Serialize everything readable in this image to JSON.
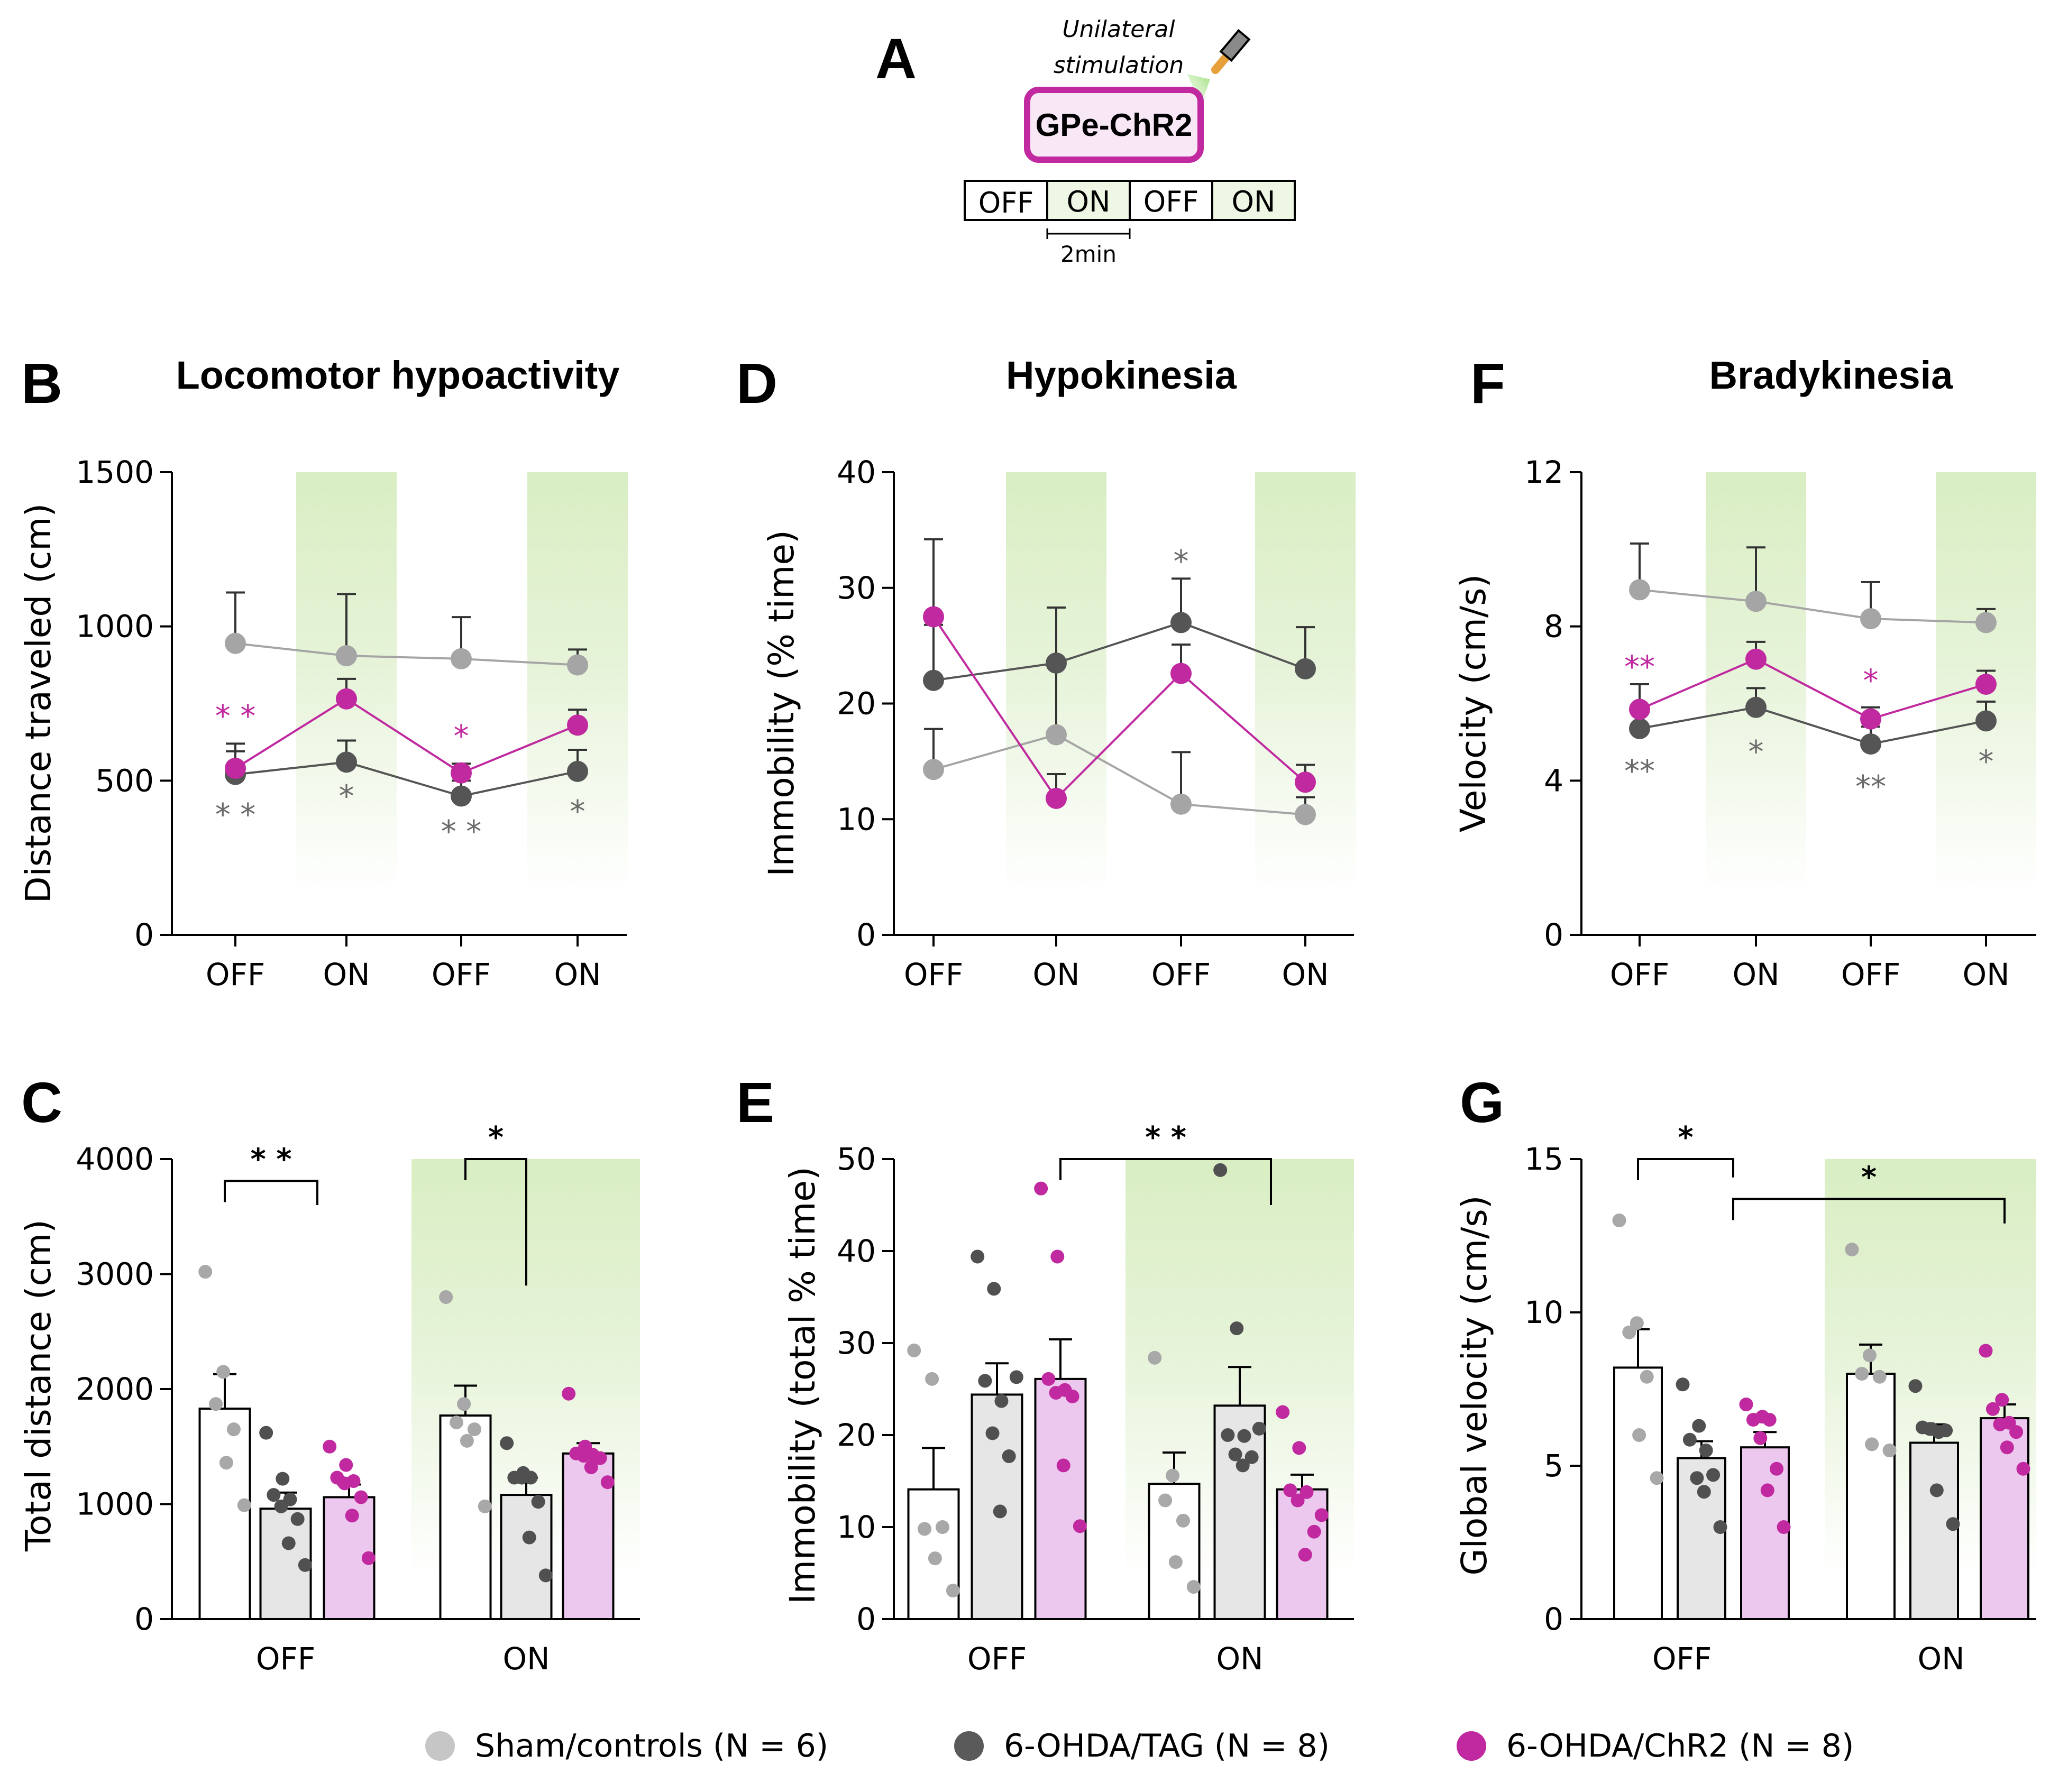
{
  "panelA": {
    "letter": "A",
    "stim_line1": "Unilateral",
    "stim_line2": "stimulation",
    "box_label": "GPe-ChR2",
    "protocol": [
      "OFF",
      "ON",
      "OFF",
      "ON"
    ],
    "scale_label": "2min"
  },
  "legend": [
    {
      "label": "Sham/controls (N = 6)",
      "color": "#c6c6c6"
    },
    {
      "label": "6-OHDA/TAG (N = 8)",
      "color": "#5a5a5a"
    },
    {
      "label": "6-OHDA/ChR2 (N = 8)",
      "color": "#c0299f"
    }
  ],
  "colors": {
    "sham": "#a5a5a5",
    "tag": "#555555",
    "chr2": "#c0299f",
    "tag_star": "#6a6a6a",
    "green_top": "#dcefc6",
    "bar_sham": "#ffffff",
    "bar_tag": "#e6e6e6",
    "bar_chr2": "#ecc8ef"
  },
  "chart_data": [
    {
      "id": "B",
      "letter": "B",
      "type": "line",
      "title": "Locomotor hypoactivity",
      "ylabel": "Distance traveled (cm)",
      "ylim": [
        0,
        1500
      ],
      "yticks": [
        0,
        500,
        1000,
        1500
      ],
      "categories": [
        "OFF",
        "ON",
        "OFF",
        "ON"
      ],
      "shaded": [
        1,
        3
      ],
      "series": [
        {
          "name": "Sham/controls",
          "key": "sham",
          "values": [
            945,
            905,
            895,
            875
          ],
          "err": [
            165,
            200,
            135,
            50
          ]
        },
        {
          "name": "6-OHDA/TAG",
          "key": "tag",
          "values": [
            520,
            560,
            450,
            530
          ],
          "err": [
            100,
            70,
            50,
            70
          ]
        },
        {
          "name": "6-OHDA/ChR2",
          "key": "chr2",
          "values": [
            540,
            765,
            525,
            680
          ],
          "err": [
            55,
            65,
            30,
            50
          ]
        }
      ],
      "stars": [
        {
          "text": "* *",
          "x": 0,
          "y": 710,
          "key": "chr2"
        },
        {
          "text": "* *",
          "x": 0,
          "y": 390,
          "key": "tag"
        },
        {
          "text": "*",
          "x": 1,
          "y": 450,
          "key": "tag"
        },
        {
          "text": "*",
          "x": 2,
          "y": 645,
          "key": "chr2"
        },
        {
          "text": "* *",
          "x": 2,
          "y": 335,
          "key": "tag"
        },
        {
          "text": "*",
          "x": 3,
          "y": 400,
          "key": "tag"
        }
      ]
    },
    {
      "id": "D",
      "letter": "D",
      "type": "line",
      "title": "Hypokinesia",
      "ylabel": "Immobility (% time)",
      "ylim": [
        0,
        40
      ],
      "yticks": [
        0,
        10,
        20,
        30,
        40
      ],
      "categories": [
        "OFF",
        "ON",
        "OFF",
        "ON"
      ],
      "shaded": [
        1,
        3
      ],
      "series": [
        {
          "name": "Sham/controls",
          "key": "sham",
          "values": [
            14.3,
            17.3,
            11.3,
            10.4
          ],
          "err": [
            3.5,
            6.0,
            4.5,
            1.5
          ]
        },
        {
          "name": "6-OHDA/TAG",
          "key": "tag",
          "values": [
            22.0,
            23.5,
            27.0,
            23.0
          ],
          "err": [
            4.8,
            4.8,
            3.8,
            3.6
          ]
        },
        {
          "name": "6-OHDA/ChR2",
          "key": "chr2",
          "values": [
            27.5,
            11.8,
            22.6,
            13.2
          ],
          "err": [
            6.7,
            2.1,
            2.5,
            1.5
          ]
        }
      ],
      "stars": [
        {
          "text": "*",
          "x": 2,
          "y": 32.3,
          "key": "tag"
        }
      ]
    },
    {
      "id": "F",
      "letter": "F",
      "type": "line",
      "title": "Bradykinesia",
      "ylabel": "Velocity (cm/s)",
      "ylim": [
        0,
        12
      ],
      "yticks": [
        0,
        4,
        8,
        12
      ],
      "categories": [
        "OFF",
        "ON",
        "OFF",
        "ON"
      ],
      "shaded": [
        1,
        3
      ],
      "series": [
        {
          "name": "Sham/controls",
          "key": "sham",
          "values": [
            8.95,
            8.65,
            8.2,
            8.1
          ],
          "err": [
            1.2,
            1.4,
            0.95,
            0.35
          ]
        },
        {
          "name": "6-OHDA/TAG",
          "key": "tag",
          "values": [
            5.35,
            5.9,
            4.95,
            5.55
          ],
          "err": [
            0.55,
            0.5,
            0.45,
            0.5
          ]
        },
        {
          "name": "6-OHDA/ChR2",
          "key": "chr2",
          "values": [
            5.85,
            7.15,
            5.6,
            6.5
          ],
          "err": [
            0.65,
            0.45,
            0.3,
            0.35
          ]
        }
      ],
      "stars": [
        {
          "text": "**",
          "x": 0,
          "y": 6.95,
          "key": "chr2"
        },
        {
          "text": "**",
          "x": 0,
          "y": 4.25,
          "key": "tag"
        },
        {
          "text": "*",
          "x": 1,
          "y": 4.75,
          "key": "tag"
        },
        {
          "text": "*",
          "x": 2,
          "y": 6.6,
          "key": "chr2"
        },
        {
          "text": "**",
          "x": 2,
          "y": 3.85,
          "key": "tag"
        },
        {
          "text": "*",
          "x": 3,
          "y": 4.5,
          "key": "tag"
        }
      ]
    },
    {
      "id": "C",
      "letter": "C",
      "type": "bar",
      "ylabel": "Total distance (cm)",
      "ylim": [
        0,
        4000
      ],
      "yticks": [
        0,
        1000,
        2000,
        3000,
        4000
      ],
      "categories": [
        "OFF",
        "ON"
      ],
      "shaded": [
        1
      ],
      "groups": [
        {
          "category": "OFF",
          "bars": [
            {
              "key": "sham",
              "value": 1830,
              "err": 300,
              "points": [
                3020,
                2150,
                1870,
                1650,
                1360,
                990
              ]
            },
            {
              "key": "tag",
              "value": 960,
              "err": 140,
              "points": [
                1620,
                1220,
                1080,
                1040,
                980,
                870,
                660,
                470
              ]
            },
            {
              "key": "chr2",
              "value": 1060,
              "err": 110,
              "points": [
                1500,
                1340,
                1230,
                1200,
                1180,
                1060,
                900,
                530
              ]
            }
          ]
        },
        {
          "category": "ON",
          "bars": [
            {
              "key": "sham",
              "value": 1770,
              "err": 260,
              "points": [
                2800,
                1870,
                1710,
                1650,
                1550,
                980
              ]
            },
            {
              "key": "tag",
              "value": 1080,
              "err": 150,
              "points": [
                1530,
                1270,
                1230,
                1230,
                1230,
                1020,
                710,
                380
              ]
            },
            {
              "key": "chr2",
              "value": 1440,
              "err": 90,
              "points": [
                1960,
                1500,
                1440,
                1430,
                1420,
                1400,
                1320,
                1190
              ]
            }
          ]
        }
      ],
      "brackets": [
        {
          "text": "* *",
          "from": [
            0,
            0
          ],
          "to": [
            0,
            1.5
          ],
          "y1": 3810,
          "y2": 3600
        },
        {
          "text": "*",
          "from": [
            1,
            0
          ],
          "to": [
            1,
            1
          ],
          "y1": 4000,
          "y2": 2900
        }
      ]
    },
    {
      "id": "E",
      "letter": "E",
      "type": "bar",
      "ylabel": "Immobility (total % time)",
      "ylim": [
        0,
        50
      ],
      "yticks": [
        0,
        10,
        20,
        30,
        40,
        50
      ],
      "categories": [
        "OFF",
        "ON"
      ],
      "shaded": [
        1
      ],
      "groups": [
        {
          "category": "OFF",
          "bars": [
            {
              "key": "sham",
              "value": 14.1,
              "err": 4.5,
              "points": [
                29.2,
                26.1,
                9.8,
                10.0,
                6.6,
                3.1
              ]
            },
            {
              "key": "tag",
              "value": 24.4,
              "err": 3.4,
              "points": [
                39.4,
                35.9,
                25.9,
                23.7,
                20.2,
                17.7,
                11.7,
                26.3
              ]
            },
            {
              "key": "chr2",
              "value": 26.1,
              "err": 4.3,
              "points": [
                46.8,
                39.4,
                26.1,
                24.9,
                24.6,
                24.2,
                16.7,
                10.1
              ]
            }
          ]
        },
        {
          "category": "ON",
          "bars": [
            {
              "key": "sham",
              "value": 14.7,
              "err": 3.4,
              "points": [
                28.4,
                15.6,
                12.9,
                10.7,
                6.2,
                3.5
              ]
            },
            {
              "key": "tag",
              "value": 23.2,
              "err": 4.2,
              "points": [
                48.8,
                31.6,
                20.0,
                19.9,
                17.9,
                17.6,
                16.7,
                20.7
              ]
            },
            {
              "key": "chr2",
              "value": 14.1,
              "err": 1.6,
              "points": [
                22.5,
                18.6,
                14.0,
                13.8,
                12.9,
                9.5,
                7.0,
                11.3
              ]
            }
          ]
        }
      ],
      "brackets": [
        {
          "text": "* *",
          "from": [
            0,
            2
          ],
          "to": [
            1,
            1.5
          ],
          "y1": 50,
          "y2": 45
        }
      ]
    },
    {
      "id": "G",
      "letter": "G",
      "type": "bar",
      "ylabel": "Global velocity (cm/s)",
      "ylim": [
        0,
        15
      ],
      "yticks": [
        0,
        5,
        10,
        15
      ],
      "categories": [
        "OFF",
        "ON"
      ],
      "shaded": [
        1
      ],
      "groups": [
        {
          "category": "OFF",
          "bars": [
            {
              "key": "sham",
              "value": 8.2,
              "err": 1.25,
              "points": [
                13.0,
                9.65,
                9.35,
                7.9,
                6.0,
                4.6
              ]
            },
            {
              "key": "tag",
              "value": 5.25,
              "err": 0.55,
              "points": [
                7.65,
                6.3,
                5.85,
                5.5,
                4.6,
                4.7,
                4.15,
                3.0
              ]
            },
            {
              "key": "chr2",
              "value": 5.6,
              "err": 0.5,
              "points": [
                7.0,
                6.6,
                6.5,
                6.5,
                5.9,
                4.9,
                4.2,
                3.0
              ]
            }
          ]
        },
        {
          "category": "ON",
          "bars": [
            {
              "key": "sham",
              "value": 8.0,
              "err": 0.95,
              "points": [
                12.05,
                8.6,
                8.0,
                7.9,
                5.7,
                5.5
              ]
            },
            {
              "key": "tag",
              "value": 5.75,
              "err": 0.6,
              "points": [
                7.6,
                6.2,
                6.25,
                6.1,
                6.2,
                6.15,
                4.2,
                3.1
              ]
            },
            {
              "key": "chr2",
              "value": 6.55,
              "err": 0.45,
              "points": [
                8.75,
                7.15,
                6.85,
                6.4,
                6.35,
                6.1,
                5.6,
                4.9
              ]
            }
          ]
        }
      ],
      "brackets": [
        {
          "text": "*",
          "from": [
            0,
            0
          ],
          "to": [
            0,
            1.5
          ],
          "y1": 15.0,
          "y2": 14.4
        },
        {
          "text": "*",
          "from": [
            0,
            1.5
          ],
          "to": [
            1,
            2
          ],
          "y1": 13.7,
          "y2": 12.9
        }
      ]
    }
  ]
}
